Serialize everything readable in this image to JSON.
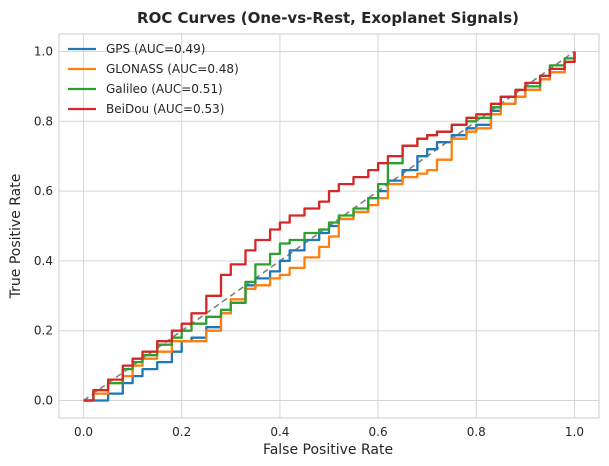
{
  "chart_data": {
    "type": "line",
    "title": "ROC Curves (One-vs-Rest, Exoplanet Signals)",
    "xlabel": "False Positive Rate",
    "ylabel": "True Positive Rate",
    "xlim": [
      -0.05,
      1.05
    ],
    "ylim": [
      -0.05,
      1.05
    ],
    "xticks": [
      "0.0",
      "0.2",
      "0.4",
      "0.6",
      "0.8",
      "1.0"
    ],
    "yticks": [
      "0.0",
      "0.2",
      "0.4",
      "0.6",
      "0.8",
      "1.0"
    ],
    "grid": true,
    "legend_position": "upper-left",
    "diagonal": {
      "x": [
        0,
        1
      ],
      "y": [
        0,
        1
      ],
      "color": "#808080",
      "style": "dashed"
    },
    "series": [
      {
        "name": "GPS (AUC=0.49)",
        "color": "#1f77b4",
        "x": [
          0,
          0.02,
          0.05,
          0.08,
          0.1,
          0.12,
          0.15,
          0.18,
          0.2,
          0.22,
          0.25,
          0.28,
          0.3,
          0.33,
          0.35,
          0.38,
          0.4,
          0.42,
          0.45,
          0.48,
          0.5,
          0.52,
          0.55,
          0.58,
          0.6,
          0.62,
          0.65,
          0.68,
          0.7,
          0.72,
          0.75,
          0.78,
          0.8,
          0.83,
          0.85,
          0.88,
          0.9,
          0.93,
          0.95,
          0.98,
          1.0
        ],
        "y": [
          0,
          0.0,
          0.02,
          0.05,
          0.07,
          0.09,
          0.11,
          0.14,
          0.17,
          0.18,
          0.21,
          0.25,
          0.28,
          0.33,
          0.35,
          0.37,
          0.4,
          0.43,
          0.46,
          0.48,
          0.5,
          0.52,
          0.54,
          0.58,
          0.6,
          0.63,
          0.66,
          0.7,
          0.72,
          0.74,
          0.76,
          0.78,
          0.79,
          0.83,
          0.85,
          0.87,
          0.89,
          0.92,
          0.94,
          0.97,
          1.0
        ]
      },
      {
        "name": "GLONASS (AUC=0.48)",
        "color": "#ff7f0e",
        "x": [
          0,
          0.02,
          0.05,
          0.08,
          0.1,
          0.12,
          0.15,
          0.18,
          0.2,
          0.22,
          0.25,
          0.28,
          0.3,
          0.33,
          0.35,
          0.38,
          0.4,
          0.42,
          0.45,
          0.48,
          0.5,
          0.52,
          0.55,
          0.58,
          0.6,
          0.62,
          0.65,
          0.68,
          0.7,
          0.72,
          0.75,
          0.78,
          0.8,
          0.83,
          0.85,
          0.88,
          0.9,
          0.93,
          0.95,
          0.98,
          1.0
        ],
        "y": [
          0,
          0.02,
          0.05,
          0.07,
          0.1,
          0.12,
          0.14,
          0.17,
          0.17,
          0.17,
          0.2,
          0.25,
          0.29,
          0.32,
          0.33,
          0.35,
          0.36,
          0.38,
          0.41,
          0.44,
          0.47,
          0.52,
          0.54,
          0.56,
          0.58,
          0.62,
          0.64,
          0.65,
          0.66,
          0.69,
          0.75,
          0.77,
          0.78,
          0.82,
          0.85,
          0.87,
          0.89,
          0.92,
          0.94,
          0.97,
          1.0
        ]
      },
      {
        "name": "Galileo (AUC=0.51)",
        "color": "#2ca02c",
        "x": [
          0,
          0.02,
          0.05,
          0.08,
          0.1,
          0.12,
          0.15,
          0.18,
          0.2,
          0.22,
          0.25,
          0.28,
          0.3,
          0.33,
          0.35,
          0.38,
          0.4,
          0.42,
          0.45,
          0.48,
          0.5,
          0.52,
          0.55,
          0.58,
          0.6,
          0.62,
          0.65,
          0.68,
          0.7,
          0.72,
          0.75,
          0.78,
          0.8,
          0.83,
          0.85,
          0.88,
          0.9,
          0.93,
          0.95,
          0.98,
          1.0
        ],
        "y": [
          0,
          0.03,
          0.05,
          0.09,
          0.11,
          0.13,
          0.16,
          0.18,
          0.2,
          0.22,
          0.24,
          0.26,
          0.28,
          0.34,
          0.39,
          0.42,
          0.45,
          0.46,
          0.48,
          0.49,
          0.51,
          0.53,
          0.55,
          0.58,
          0.62,
          0.68,
          0.73,
          0.75,
          0.76,
          0.77,
          0.79,
          0.8,
          0.81,
          0.84,
          0.87,
          0.89,
          0.9,
          0.93,
          0.96,
          0.98,
          1.0
        ]
      },
      {
        "name": "BeiDou (AUC=0.53)",
        "color": "#d62728",
        "x": [
          0,
          0.02,
          0.05,
          0.08,
          0.1,
          0.12,
          0.15,
          0.18,
          0.2,
          0.22,
          0.25,
          0.28,
          0.3,
          0.33,
          0.35,
          0.38,
          0.4,
          0.42,
          0.45,
          0.48,
          0.5,
          0.52,
          0.55,
          0.58,
          0.6,
          0.62,
          0.65,
          0.68,
          0.7,
          0.72,
          0.75,
          0.78,
          0.8,
          0.83,
          0.85,
          0.88,
          0.9,
          0.93,
          0.95,
          0.98,
          1.0
        ],
        "y": [
          0,
          0.03,
          0.06,
          0.1,
          0.12,
          0.14,
          0.17,
          0.2,
          0.22,
          0.25,
          0.3,
          0.36,
          0.39,
          0.43,
          0.46,
          0.49,
          0.51,
          0.53,
          0.55,
          0.57,
          0.6,
          0.62,
          0.64,
          0.66,
          0.68,
          0.7,
          0.73,
          0.75,
          0.76,
          0.77,
          0.79,
          0.81,
          0.82,
          0.85,
          0.87,
          0.89,
          0.91,
          0.93,
          0.95,
          0.97,
          1.0
        ]
      }
    ]
  }
}
